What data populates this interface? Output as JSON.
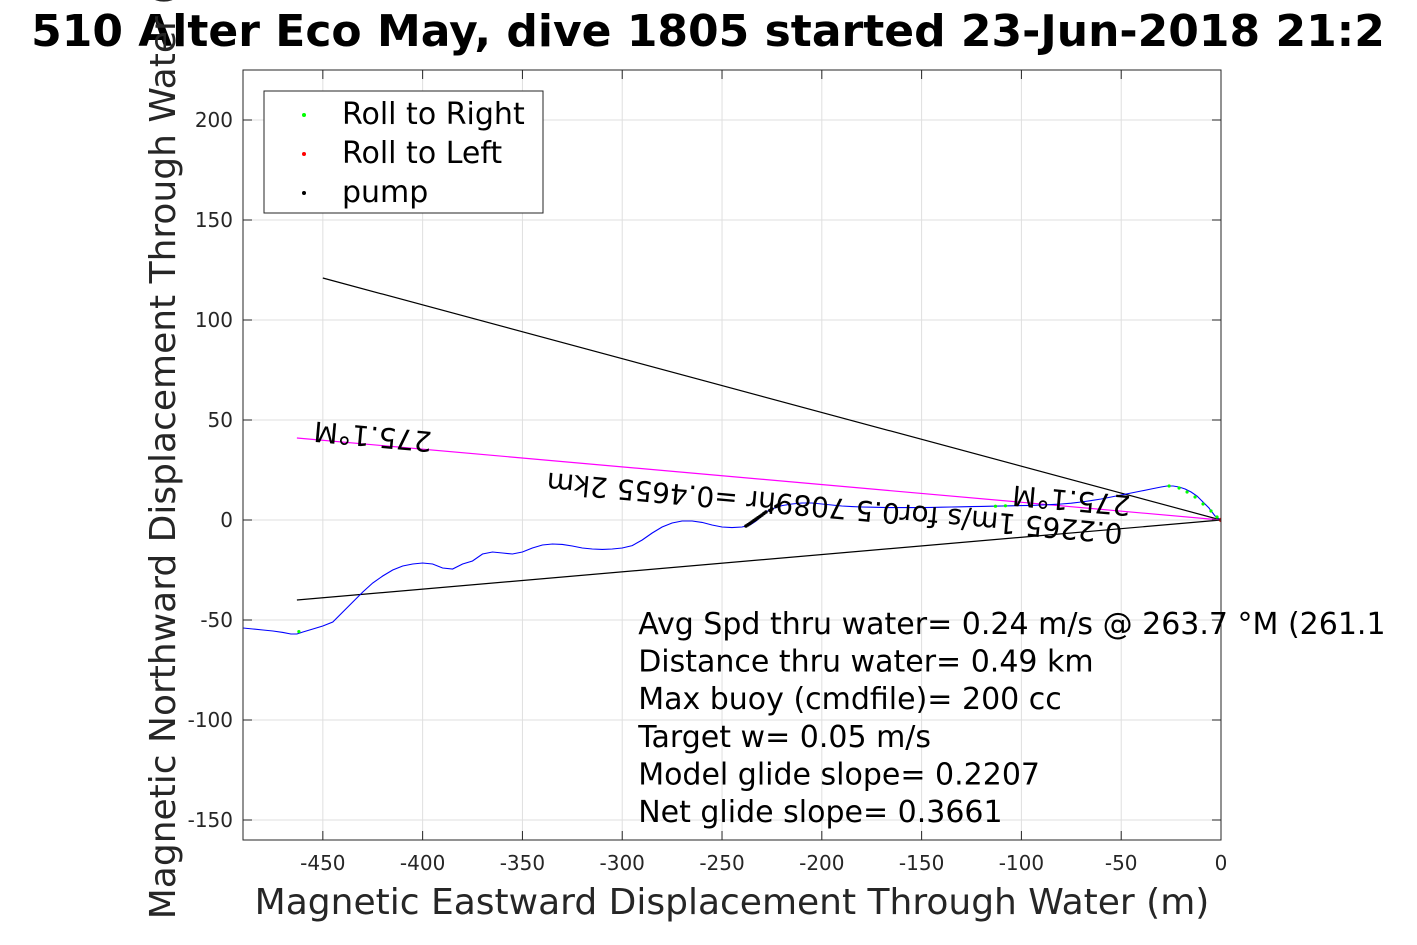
{
  "chart_data": {
    "type": "line",
    "title": "510 Alter Eco May, dive 1805 started 23-Jun-2018 21:2",
    "xlabel": "Magnetic Eastward Displacement Through Water (m)",
    "ylabel": "Magnetic Northward Displacement Through Water (",
    "xlim": [
      -490,
      0
    ],
    "ylim": [
      -160,
      225
    ],
    "xticks": [
      -450,
      -400,
      -350,
      -300,
      -250,
      -200,
      -150,
      -100,
      -50,
      0
    ],
    "yticks": [
      200,
      150,
      100,
      50,
      0,
      -50,
      -100,
      -150
    ],
    "grid": true,
    "legend_position": "top-left",
    "legend": [
      {
        "label": "Roll to Right",
        "color": "#00ff00"
      },
      {
        "label": "Roll to Left",
        "color": "#ff0000"
      },
      {
        "label": "pump",
        "color": "#000000"
      }
    ],
    "track": {
      "color": "#0000ff",
      "x": [
        0,
        -3,
        -6,
        -9,
        -12,
        -15,
        -18,
        -21,
        -24,
        -27,
        -30,
        -35,
        -40,
        -45,
        -50,
        -55,
        -60,
        -65,
        -70,
        -75,
        -80,
        -85,
        -90,
        -95,
        -100,
        -105,
        -110,
        -115,
        -120,
        -125,
        -130,
        -135,
        -140,
        -145,
        -150,
        -155,
        -160,
        -165,
        -170,
        -175,
        -180,
        -185,
        -190,
        -195,
        -200,
        -205,
        -210,
        -215,
        -220,
        -225,
        -228,
        -230,
        -233,
        -236,
        -240,
        -245,
        -250,
        -255,
        -260,
        -265,
        -270,
        -275,
        -280,
        -285,
        -290,
        -295,
        -300,
        -305,
        -310,
        -315,
        -320,
        -325,
        -330,
        -335,
        -340,
        -345,
        -350,
        -355,
        -360,
        -365,
        -370,
        -375,
        -380,
        -385,
        -390,
        -395,
        -400,
        -405,
        -410,
        -415,
        -420,
        -425,
        -430,
        -435,
        -440,
        -445,
        -450,
        -455,
        -460,
        -463,
        -466,
        -470,
        -475,
        -480,
        -485,
        -490
      ],
      "y": [
        0,
        2,
        6,
        9,
        12,
        14,
        15.5,
        16.5,
        17,
        17,
        16.5,
        15.5,
        14.5,
        13.5,
        12.5,
        11.5,
        10.5,
        9.7,
        9,
        8.4,
        8,
        7.7,
        7.5,
        7.3,
        7.2,
        7.1,
        7,
        6.9,
        6.8,
        6.7,
        6.6,
        6.5,
        6.4,
        6.3,
        6.2,
        6.2,
        6.2,
        6.2,
        6.3,
        6.4,
        6.5,
        6.7,
        7,
        7.5,
        8,
        8.5,
        8.5,
        8,
        7.2,
        5.5,
        4,
        2,
        -0.5,
        -2.5,
        -3.5,
        -3.8,
        -3.5,
        -2.5,
        -1.2,
        -0.5,
        -0.5,
        -1.5,
        -3.5,
        -6.5,
        -10,
        -12.8,
        -14,
        -14.5,
        -14.7,
        -14.5,
        -14,
        -13,
        -12.2,
        -12,
        -12.5,
        -14,
        -16,
        -17,
        -16.5,
        -16,
        -17,
        -20.5,
        -22,
        -24.5,
        -24,
        -22,
        -21.5,
        -22,
        -23,
        -25,
        -28,
        -31.5,
        -36,
        -41,
        -46,
        -51,
        -53,
        -54.5,
        -56,
        -57,
        -57,
        -56.2,
        -55.5,
        -55,
        -54.5,
        -54
      ]
    },
    "reference_lines": [
      {
        "color": "#000000",
        "x": [
          0,
          -450
        ],
        "y": [
          0,
          121
        ]
      },
      {
        "color": "#000000",
        "x": [
          0,
          -463
        ],
        "y": [
          0,
          -40
        ]
      },
      {
        "color": "#ff00ff",
        "x": [
          0,
          -463
        ],
        "y": [
          0,
          41
        ]
      }
    ],
    "roll_to_right_points": {
      "x": [
        -2,
        -5,
        -9,
        -13,
        -17,
        -21,
        -26,
        -108,
        -113,
        -462
      ],
      "y": [
        1.5,
        4.5,
        8,
        11.5,
        14,
        16,
        17,
        7.1,
        6.9,
        -55.8
      ]
    },
    "roll_to_left_points": {
      "x": [
        0
      ],
      "y": [
        0
      ]
    },
    "pump_points": {
      "x": [
        -222,
        -223,
        -225,
        -226,
        -228,
        -229,
        -230,
        -231,
        -232,
        -233,
        -234,
        -235,
        -236,
        -237,
        -238
      ],
      "y": [
        7.4,
        6.8,
        5.5,
        4.8,
        4,
        3.3,
        2.5,
        1.8,
        1.1,
        0.4,
        -0.3,
        -1,
        -1.7,
        -2.4,
        -3
      ]
    },
    "rotated_labels": [
      {
        "text": "275.1°M",
        "x": -395,
        "y": 44,
        "angle": 185.1
      },
      {
        "text": "275.1°M",
        "x": -45,
        "y": 12,
        "angle": 185.1
      },
      {
        "text": "0.2265 1m/s for0.5 7089hr =0.4655 2km",
        "x": -49,
        "y": -2,
        "angle": 185.1
      }
    ],
    "annotations": [
      "Avg Spd thru water=  0.24 m/s @ 263.7 °M (261.1",
      "Distance thru water=  0.49 km",
      "Max buoy (cmdfile)= 200 cc",
      "Target w= 0.05 m/s",
      "Model glide slope= 0.2207",
      "Net glide slope= 0.3661"
    ]
  }
}
